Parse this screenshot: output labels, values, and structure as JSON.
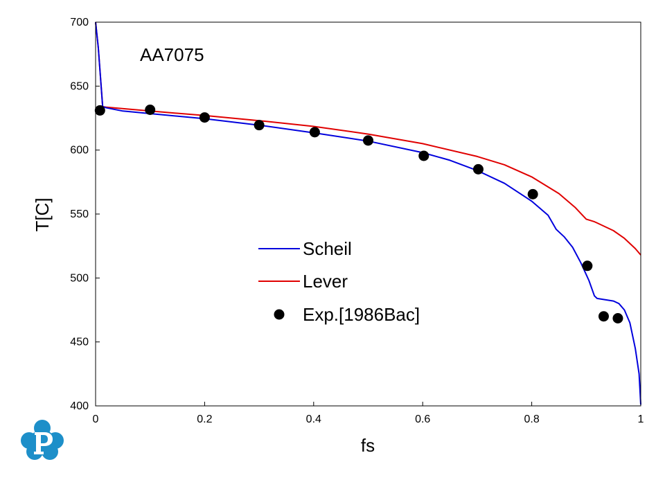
{
  "chart_data": {
    "type": "line",
    "annotation": "AA7075",
    "xlabel": "fs",
    "ylabel": "T[C]",
    "xlim": [
      0,
      1
    ],
    "ylim": [
      400,
      700
    ],
    "x_ticks": [
      0,
      0.2,
      0.4,
      0.6,
      0.8,
      1
    ],
    "x_tick_labels": [
      "0",
      "0.2",
      "0.4",
      "0.6",
      "0.8",
      "1"
    ],
    "y_ticks": [
      400,
      450,
      500,
      550,
      600,
      650,
      700
    ],
    "y_tick_labels": [
      "400",
      "450",
      "500",
      "550",
      "600",
      "650",
      "700"
    ],
    "grid": false,
    "legend_position": "center",
    "series": [
      {
        "name": "Scheil",
        "kind": "line",
        "color": "#0000dd",
        "x": [
          0,
          0.005,
          0.013,
          0.02,
          0.05,
          0.1,
          0.2,
          0.3,
          0.4,
          0.5,
          0.6,
          0.65,
          0.7,
          0.75,
          0.8,
          0.83,
          0.845,
          0.86,
          0.875,
          0.89,
          0.905,
          0.915,
          0.92,
          0.95,
          0.96,
          0.97,
          0.98,
          0.99,
          0.997,
          1.0
        ],
        "y": [
          700,
          680,
          634,
          633,
          630.5,
          628.5,
          624.5,
          619.5,
          613.5,
          607,
          598,
          592,
          584,
          574,
          560,
          549,
          538,
          532,
          524,
          512,
          498,
          486,
          484,
          482,
          480,
          475,
          465,
          445,
          425,
          401
        ]
      },
      {
        "name": "Lever",
        "kind": "line",
        "color": "#e00000",
        "x": [
          0,
          0.005,
          0.013,
          0.02,
          0.1,
          0.2,
          0.3,
          0.4,
          0.5,
          0.6,
          0.7,
          0.75,
          0.8,
          0.85,
          0.88,
          0.9,
          0.915,
          0.92,
          0.95,
          0.97,
          0.99,
          1.0
        ],
        "y": [
          700,
          680,
          634,
          633.5,
          630.5,
          627,
          623,
          618.5,
          612.5,
          605,
          595,
          588.5,
          579,
          566,
          555,
          546,
          544,
          543,
          537,
          531,
          523,
          518
        ]
      },
      {
        "name": "Exp.[1986Bac]",
        "kind": "scatter",
        "color": "#000000",
        "x": [
          0.008,
          0.1,
          0.2,
          0.3,
          0.402,
          0.5,
          0.602,
          0.702,
          0.802,
          0.902,
          0.932,
          0.958
        ],
        "y": [
          631,
          631.5,
          625.5,
          619.5,
          614,
          607.5,
          595.5,
          585,
          565.5,
          509.5,
          470,
          468.5
        ]
      }
    ]
  }
}
